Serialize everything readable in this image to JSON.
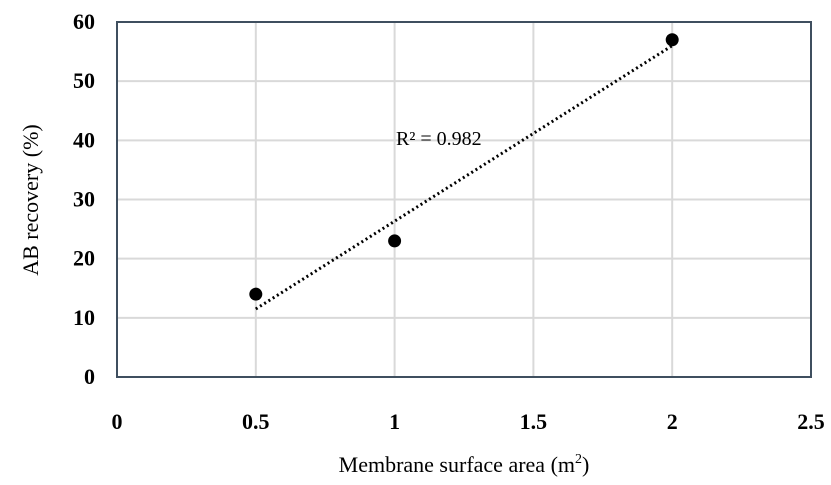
{
  "chart_data": {
    "type": "scatter",
    "title": "",
    "xlabel": "Membrane surface area (m",
    "xlabel_superscript": "2",
    "xlabel_suffix": ")",
    "ylabel": "AB recovery (%)",
    "xlim": [
      0,
      2.5
    ],
    "ylim": [
      0,
      60
    ],
    "x_ticks": [
      0,
      0.5,
      1,
      1.5,
      2,
      2.5
    ],
    "x_tick_labels": [
      "0",
      "0.5",
      "1",
      "1.5",
      "2",
      "2.5"
    ],
    "y_ticks": [
      0,
      10,
      20,
      30,
      40,
      50,
      60
    ],
    "y_tick_labels": [
      "0",
      "10",
      "20",
      "30",
      "40",
      "50",
      "60"
    ],
    "grid": true,
    "series": [
      {
        "x": [
          0.5,
          1,
          2
        ],
        "y": [
          14,
          23,
          57
        ]
      }
    ],
    "trendline": {
      "type": "linear",
      "x_start": 0.5,
      "y_start": 11.5,
      "x_end": 2,
      "y_end": 56,
      "annotation": "R² = 0.982"
    },
    "colors": {
      "points": "#000000",
      "grid": "#d9d9d9",
      "border": "#3f4f5f"
    }
  }
}
